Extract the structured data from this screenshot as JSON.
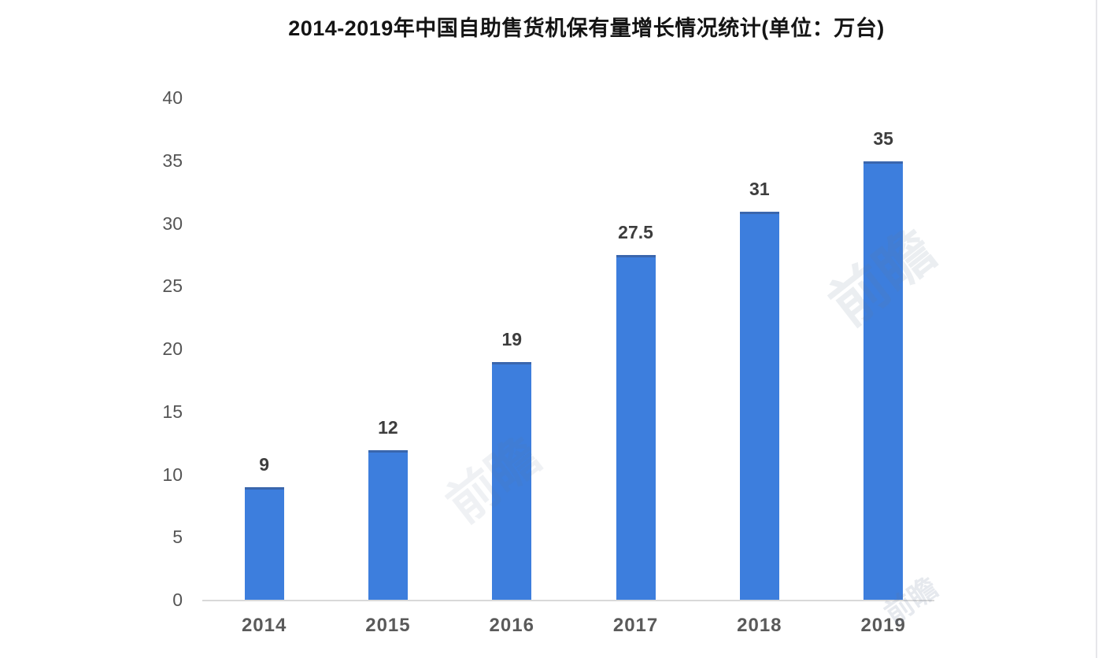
{
  "title": "2014-2019年中国自助售货机保有量增长情况统计(单位：万台)",
  "chart_data": {
    "type": "bar",
    "title": "2014-2019年中国自助售货机保有量增长情况统计(单位：万台)",
    "categories": [
      "2014",
      "2015",
      "2016",
      "2017",
      "2018",
      "2019"
    ],
    "values": [
      9,
      12,
      19,
      27.5,
      31,
      35
    ],
    "data_labels": [
      "9",
      "12",
      "19",
      "27.5",
      "31",
      "35"
    ],
    "xlabel": "",
    "ylabel": "",
    "ylim": [
      0,
      40
    ],
    "yticks": [
      0,
      5,
      10,
      15,
      20,
      25,
      30,
      35,
      40
    ],
    "grid": false,
    "legend": false,
    "bar_color": "#3d7edd",
    "bar_top_edge_color": "#3a66ad",
    "axis_line_color": "#d9d9d9",
    "value_label_color": "#3d3d3d",
    "tick_label_color": "#555555",
    "background_color": "#ffffff"
  },
  "watermarks": [
    {
      "text": "前瞻"
    },
    {
      "text": "前瞻"
    },
    {
      "text": "前瞻"
    }
  ]
}
